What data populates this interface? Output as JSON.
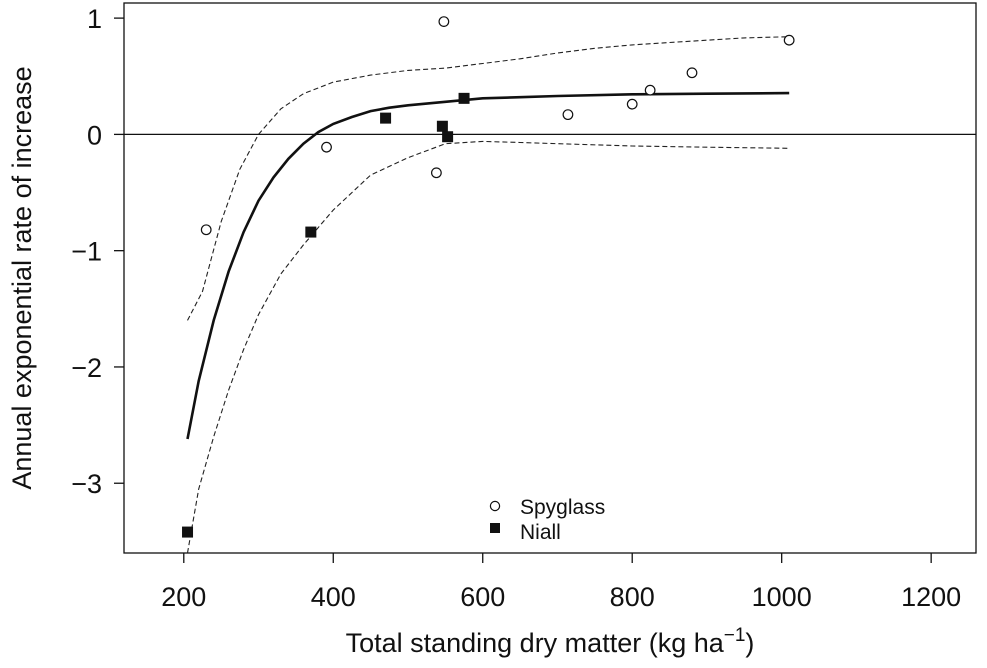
{
  "chart_data": {
    "type": "scatter",
    "xlabel": "Total standing dry matter (kg ha",
    "xlabel_sup": "−1",
    "xlabel_end": ")",
    "ylabel": "Annual exponential rate of increase",
    "xlim": [
      120,
      1260
    ],
    "ylim": [
      -3.6,
      1.13
    ],
    "xticks": [
      200,
      400,
      600,
      800,
      1000,
      1200
    ],
    "yticks": [
      1,
      0,
      -1,
      -2,
      -3
    ],
    "xtick_labels": [
      "200",
      "400",
      "600",
      "800",
      "1000",
      "1200"
    ],
    "ytick_labels": [
      "1",
      "0",
      "−1",
      "−2",
      "−3"
    ],
    "reference_line_y": 0,
    "grid": false,
    "legend_placement": "bottom-center",
    "series": [
      {
        "name": "Spyglass",
        "marker": "open-circle",
        "points": [
          [
            230,
            -0.82
          ],
          [
            391,
            -0.11
          ],
          [
            538,
            -0.33
          ],
          [
            548,
            0.97
          ],
          [
            714,
            0.17
          ],
          [
            800,
            0.26
          ],
          [
            824,
            0.38
          ],
          [
            880,
            0.53
          ],
          [
            1010,
            0.81
          ]
        ]
      },
      {
        "name": "Niall",
        "marker": "filled-square",
        "points": [
          [
            205,
            -3.42
          ],
          [
            370,
            -0.84
          ],
          [
            470,
            0.14
          ],
          [
            546,
            0.07
          ],
          [
            553,
            -0.02
          ],
          [
            575,
            0.31
          ]
        ]
      }
    ],
    "fit_curve": {
      "style": "solid",
      "points": [
        [
          205,
          -2.62
        ],
        [
          220,
          -2.12
        ],
        [
          240,
          -1.6
        ],
        [
          260,
          -1.18
        ],
        [
          280,
          -0.84
        ],
        [
          300,
          -0.57
        ],
        [
          320,
          -0.37
        ],
        [
          340,
          -0.21
        ],
        [
          360,
          -0.08
        ],
        [
          380,
          0.02
        ],
        [
          400,
          0.09
        ],
        [
          425,
          0.15
        ],
        [
          450,
          0.2
        ],
        [
          475,
          0.23
        ],
        [
          500,
          0.25
        ],
        [
          550,
          0.28
        ],
        [
          600,
          0.31
        ],
        [
          650,
          0.32
        ],
        [
          700,
          0.33
        ],
        [
          800,
          0.345
        ],
        [
          900,
          0.35
        ],
        [
          1010,
          0.355
        ]
      ]
    },
    "confidence_bands": [
      {
        "style": "dashed",
        "points": [
          [
            205,
            -1.6
          ],
          [
            225,
            -1.35
          ],
          [
            250,
            -0.75
          ],
          [
            275,
            -0.3
          ],
          [
            300,
            0.0
          ],
          [
            330,
            0.22
          ],
          [
            360,
            0.35
          ],
          [
            400,
            0.45
          ],
          [
            450,
            0.51
          ],
          [
            500,
            0.55
          ],
          [
            550,
            0.57
          ],
          [
            600,
            0.61
          ],
          [
            650,
            0.65
          ],
          [
            700,
            0.7
          ],
          [
            750,
            0.74
          ],
          [
            800,
            0.77
          ],
          [
            850,
            0.79
          ],
          [
            900,
            0.81
          ],
          [
            950,
            0.83
          ],
          [
            1010,
            0.84
          ]
        ]
      },
      {
        "style": "dashed",
        "points": [
          [
            205,
            -3.6
          ],
          [
            220,
            -3.05
          ],
          [
            240,
            -2.6
          ],
          [
            260,
            -2.2
          ],
          [
            280,
            -1.85
          ],
          [
            300,
            -1.55
          ],
          [
            330,
            -1.2
          ],
          [
            360,
            -0.95
          ],
          [
            400,
            -0.65
          ],
          [
            450,
            -0.35
          ],
          [
            500,
            -0.2
          ],
          [
            550,
            -0.08
          ],
          [
            600,
            -0.06
          ],
          [
            650,
            -0.07
          ],
          [
            700,
            -0.08
          ],
          [
            800,
            -0.1
          ],
          [
            900,
            -0.11
          ],
          [
            1010,
            -0.12
          ]
        ]
      }
    ]
  }
}
